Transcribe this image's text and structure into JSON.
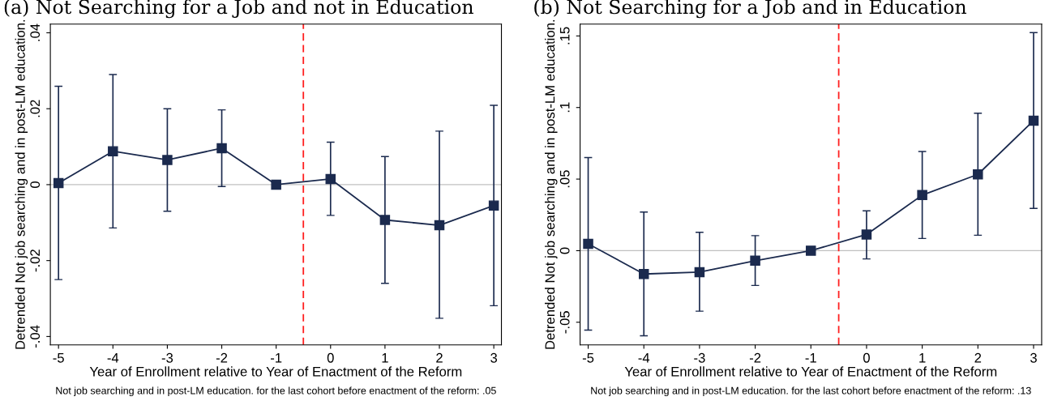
{
  "chart_data": [
    {
      "type": "line",
      "title": "(a) Not Searching for a Job and not in Education",
      "xlabel": "Year of Enrollment relative to Year of Enactment of the Reform",
      "ylabel": "Detrended Not job searching and in post-LM education.",
      "annotations": [
        "Not job searching and in post-LM education. for the last cohort before enactment of the reform: .05"
      ],
      "x": [
        -5,
        -4,
        -3,
        -2,
        -1,
        0,
        1,
        2,
        3
      ],
      "xlim": [
        -5.15,
        3.14
      ],
      "xticks": [
        -5,
        -4,
        -3,
        -2,
        -1,
        0,
        1,
        2,
        3
      ],
      "ylim": [
        -0.0422,
        0.0423
      ],
      "yticks": [
        {
          "value": -0.04,
          "label": "-.04"
        },
        {
          "value": -0.02,
          "label": "-.02"
        },
        0,
        {
          "value": 0.02,
          "label": ".02"
        },
        {
          "value": 0.04,
          "label": ".04"
        }
      ],
      "marker": "square",
      "grid": false,
      "legend": false,
      "series": [
        {
          "color": "#1b2a4e",
          "values": [
            0.0004,
            0.0088,
            0.0065,
            0.0096,
            0,
            0.0015,
            -0.0093,
            -0.0107,
            -0.0055
          ],
          "errors": [
            [
              -0.025,
              0.0259
            ],
            [
              -0.0114,
              0.029
            ],
            [
              -0.007,
              0.02
            ],
            [
              -0.0005,
              0.0197
            ],
            null,
            [
              -0.0081,
              0.0112
            ],
            [
              -0.026,
              0.0074
            ],
            [
              -0.0352,
              0.0141
            ],
            [
              -0.0319,
              0.0209
            ]
          ]
        }
      ],
      "ref_lines": [
        {
          "axis": "y",
          "value": 0,
          "color": "#c0c0c0",
          "line_style": "solid"
        },
        {
          "axis": "x",
          "value": -0.5,
          "color": "#ff2020",
          "line_style": "dashed"
        }
      ]
    },
    {
      "type": "line",
      "title": "(b) Not Searching for a Job and in Education",
      "xlabel": "Year of Enrollment relative to Year of Enactment of the Reform",
      "ylabel": "Detrended Not job searching and in post-LM education.",
      "annotations": [
        "Not job searching and in post-LM education. for the last cohort before enactment of the reform: .13"
      ],
      "x": [
        -5,
        -4,
        -3,
        -2,
        -1,
        0,
        1,
        2,
        3
      ],
      "xlim": [
        -5.145,
        3.145
      ],
      "xticks": [
        -5,
        -4,
        -3,
        -2,
        -1,
        0,
        1,
        2,
        3
      ],
      "ylim": [
        -0.0658,
        0.1583
      ],
      "yticks": [
        {
          "value": -0.05,
          "label": "-.05"
        },
        0,
        {
          "value": 0.05,
          "label": ".05"
        },
        {
          "value": 0.1,
          "label": ".1"
        },
        {
          "value": 0.15,
          "label": ".15"
        }
      ],
      "marker": "square",
      "grid": false,
      "legend": false,
      "series": [
        {
          "color": "#1b2a4e",
          "values": [
            0.0048,
            -0.0163,
            -0.015,
            -0.007,
            0,
            0.0113,
            0.0388,
            0.0533,
            0.0908
          ],
          "errors": [
            [
              -0.0555,
              0.065
            ],
            [
              -0.0595,
              0.027
            ],
            [
              -0.0423,
              0.0128
            ],
            [
              -0.0243,
              0.0105
            ],
            null,
            [
              -0.0058,
              0.0278
            ],
            [
              0.0085,
              0.0693
            ],
            [
              0.0108,
              0.096
            ],
            [
              0.0295,
              0.1523
            ]
          ]
        }
      ],
      "ref_lines": [
        {
          "axis": "y",
          "value": 0,
          "color": "#c0c0c0",
          "line_style": "solid"
        },
        {
          "axis": "x",
          "value": -0.5,
          "color": "#ff2020",
          "line_style": "dashed"
        }
      ]
    }
  ]
}
